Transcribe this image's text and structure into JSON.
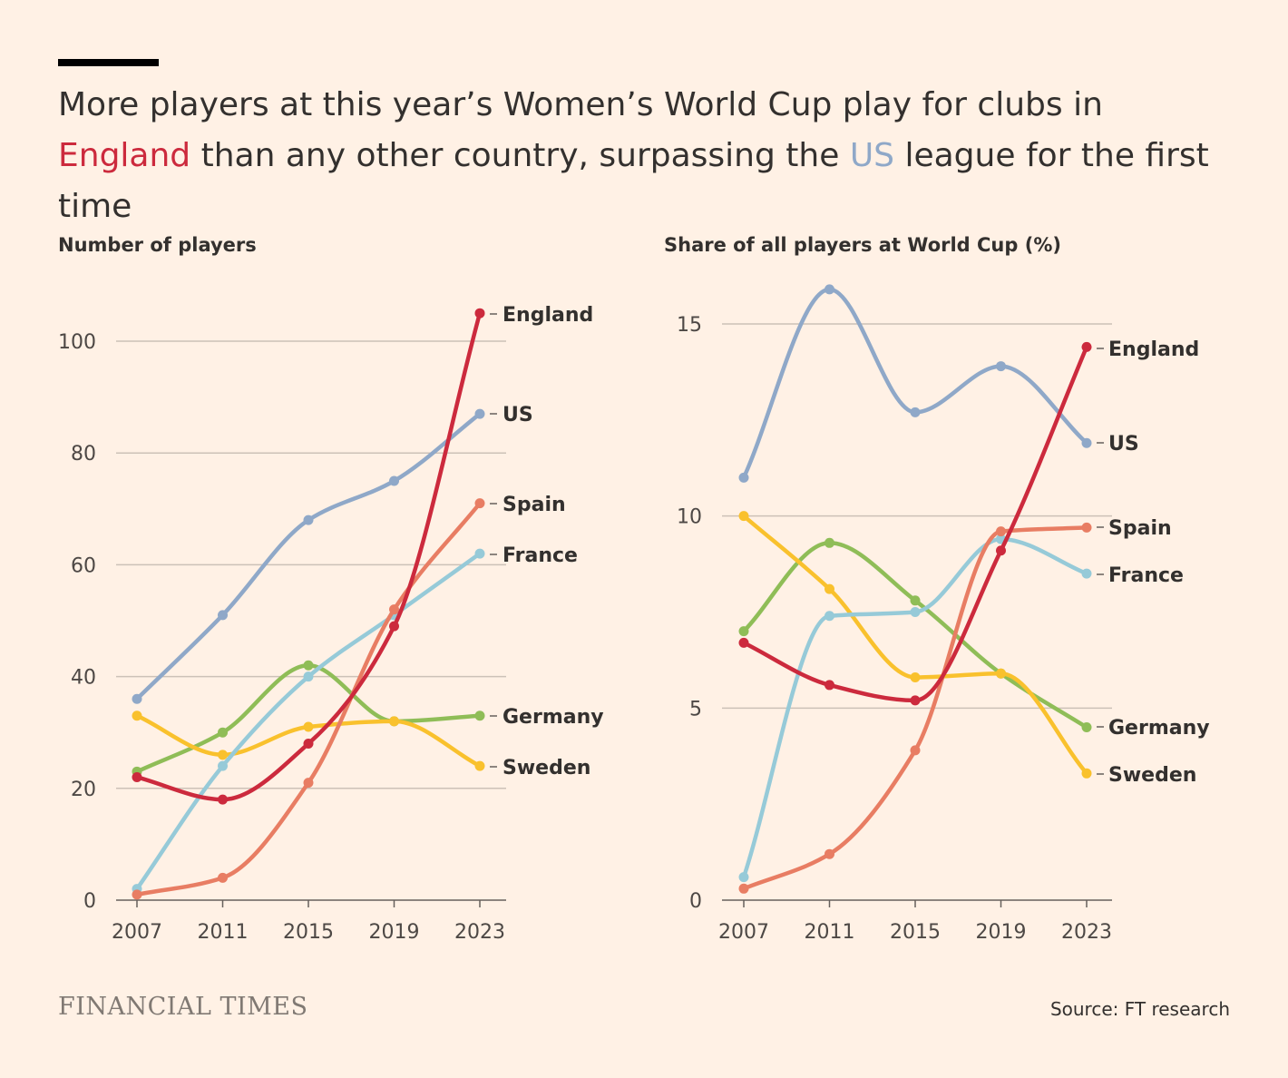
{
  "headline": {
    "part1": "More players at this year’s Women’s World Cup play for clubs in ",
    "highlight1": "England",
    "part2": " than any other country, surpassing the ",
    "highlight2": "US",
    "part3": " league for the first time"
  },
  "colors": {
    "England": "#cc2a3d",
    "US": "#8fa8c8",
    "Spain": "#e87d63",
    "France": "#96cad8",
    "Germany": "#8fbd57",
    "Sweden": "#f9c12d",
    "grid": "#ccc1b7",
    "axis": "#66605c"
  },
  "chart_data": [
    {
      "type": "line",
      "title": "Number of players",
      "xlabel": "",
      "ylabel": "",
      "x": [
        2007,
        2011,
        2015,
        2019,
        2023
      ],
      "x_ticks": [
        "2007",
        "2011",
        "2015",
        "2019",
        "2023"
      ],
      "y_ticks": [
        0,
        20,
        40,
        60,
        80,
        100
      ],
      "ylim": [
        0,
        105
      ],
      "series": [
        {
          "name": "US",
          "values": [
            36,
            51,
            68,
            75,
            87
          ]
        },
        {
          "name": "Germany",
          "values": [
            23,
            30,
            42,
            32,
            33
          ]
        },
        {
          "name": "Sweden",
          "values": [
            33,
            26,
            31,
            32,
            24
          ]
        },
        {
          "name": "France",
          "values": [
            2,
            24,
            40,
            51,
            62
          ]
        },
        {
          "name": "Spain",
          "values": [
            1,
            4,
            21,
            52,
            71
          ]
        },
        {
          "name": "England",
          "values": [
            22,
            18,
            28,
            49,
            105
          ]
        }
      ]
    },
    {
      "type": "line",
      "title": "Share of all players at World Cup (%)",
      "xlabel": "",
      "ylabel": "",
      "x": [
        2007,
        2011,
        2015,
        2019,
        2023
      ],
      "x_ticks": [
        "2007",
        "2011",
        "2015",
        "2019",
        "2023"
      ],
      "y_ticks": [
        0,
        5,
        10,
        15
      ],
      "ylim": [
        0,
        15.8
      ],
      "series": [
        {
          "name": "US",
          "values": [
            11.0,
            15.9,
            12.7,
            13.9,
            11.9
          ]
        },
        {
          "name": "Germany",
          "values": [
            7.0,
            9.3,
            7.8,
            5.9,
            4.5
          ]
        },
        {
          "name": "Sweden",
          "values": [
            10.0,
            8.1,
            5.8,
            5.9,
            3.3
          ]
        },
        {
          "name": "France",
          "values": [
            0.6,
            7.4,
            7.5,
            9.4,
            8.5
          ]
        },
        {
          "name": "Spain",
          "values": [
            0.3,
            1.2,
            3.9,
            9.6,
            9.7
          ]
        },
        {
          "name": "England",
          "values": [
            6.7,
            5.6,
            5.2,
            9.1,
            14.4
          ]
        }
      ]
    }
  ],
  "footer": {
    "logo": "FINANCIAL TIMES",
    "source": "Source: FT research"
  }
}
